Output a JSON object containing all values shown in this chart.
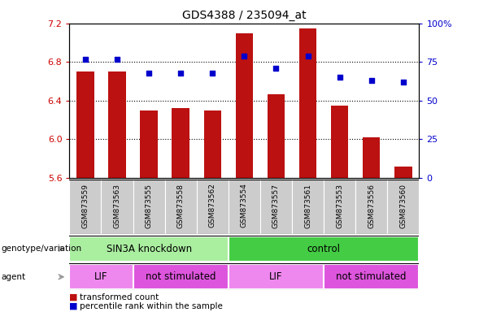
{
  "title": "GDS4388 / 235094_at",
  "samples": [
    "GSM873559",
    "GSM873563",
    "GSM873555",
    "GSM873558",
    "GSM873562",
    "GSM873554",
    "GSM873557",
    "GSM873561",
    "GSM873553",
    "GSM873556",
    "GSM873560"
  ],
  "bar_values": [
    6.7,
    6.7,
    6.3,
    6.32,
    6.3,
    7.1,
    6.47,
    7.15,
    6.35,
    6.02,
    5.72
  ],
  "percentile_values": [
    77,
    77,
    68,
    68,
    68,
    79,
    71,
    79,
    65,
    63,
    62
  ],
  "ylim_left": [
    5.6,
    7.2
  ],
  "ylim_right": [
    0,
    100
  ],
  "yticks_left": [
    5.6,
    6.0,
    6.4,
    6.8,
    7.2
  ],
  "yticks_right": [
    0,
    25,
    50,
    75,
    100
  ],
  "hgrid_lines": [
    6.0,
    6.4,
    6.8
  ],
  "bar_color": "#bb1111",
  "dot_color": "#0000cc",
  "bar_width": 0.55,
  "genotype_groups": [
    {
      "label": "SIN3A knockdown",
      "start": 0,
      "end": 5,
      "color": "#aaeea0"
    },
    {
      "label": "control",
      "start": 5,
      "end": 11,
      "color": "#44cc44"
    }
  ],
  "agent_groups": [
    {
      "label": "LIF",
      "start": 0,
      "end": 2,
      "color": "#ee88ee"
    },
    {
      "label": "not stimulated",
      "start": 2,
      "end": 5,
      "color": "#dd55dd"
    },
    {
      "label": "LIF",
      "start": 5,
      "end": 8,
      "color": "#ee88ee"
    },
    {
      "label": "not stimulated",
      "start": 8,
      "end": 11,
      "color": "#dd55dd"
    }
  ],
  "legend_items": [
    {
      "label": "transformed count",
      "color": "#bb1111"
    },
    {
      "label": "percentile rank within the sample",
      "color": "#0000cc"
    }
  ],
  "left_axis_color": "#cc0000",
  "right_axis_color": "#0000cc",
  "sample_box_color": "#cccccc",
  "genotype_label": "genotype/variation",
  "agent_label": "agent",
  "arrow_color": "#999999"
}
